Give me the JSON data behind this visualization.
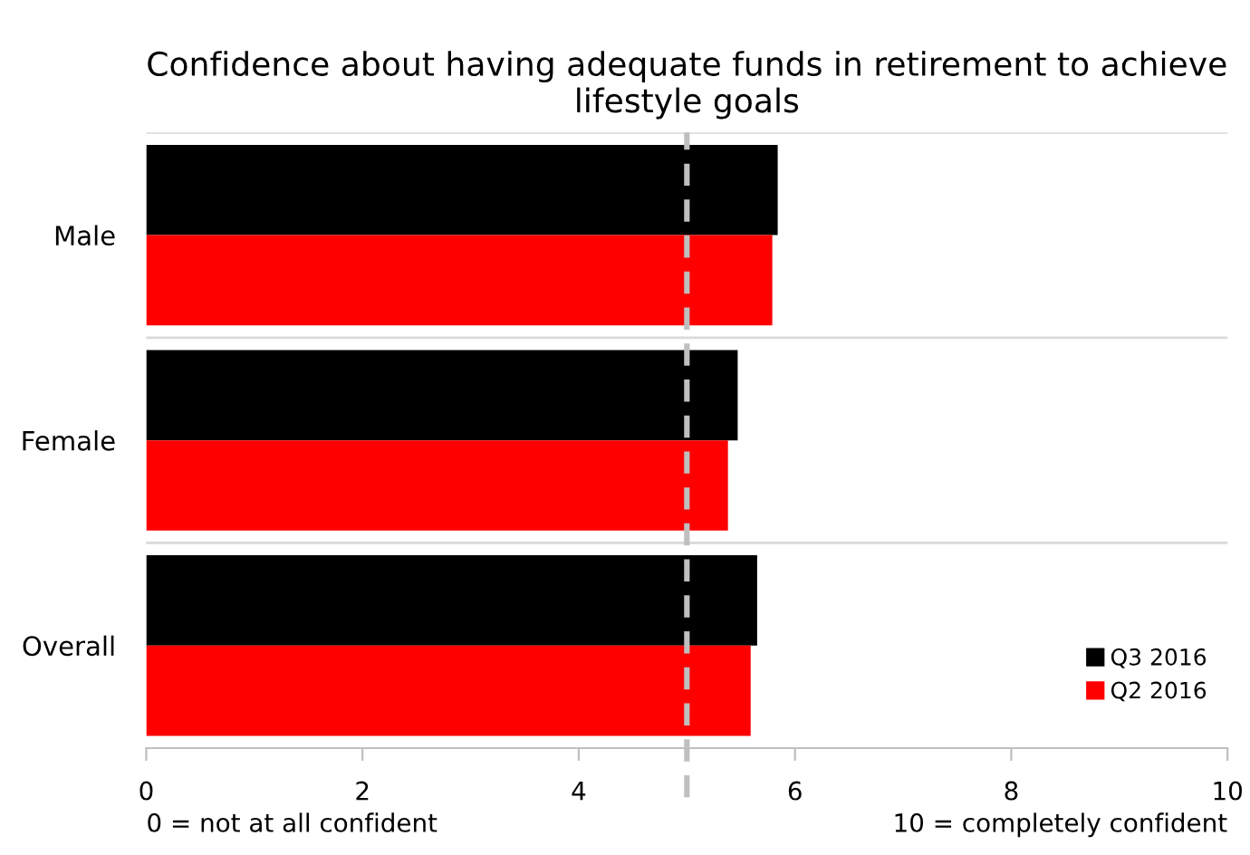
{
  "chart_data": {
    "type": "bar",
    "orientation": "horizontal",
    "title": "Confidence about having adequate funds in retirement to achieve lifestyle goals",
    "categories": [
      "Male",
      "Female",
      "Overall"
    ],
    "series": [
      {
        "name": "Q3 2016",
        "color": "#000000",
        "values": [
          5.84,
          5.47,
          5.65
        ]
      },
      {
        "name": "Q2 2016",
        "color": "#ff0000",
        "values": [
          5.79,
          5.38,
          5.59
        ]
      }
    ],
    "xlim": [
      0,
      10
    ],
    "xticks": [
      0,
      2,
      4,
      6,
      8,
      10
    ],
    "ref_lines": [
      {
        "axis": "x",
        "value": 5,
        "color": "#bfbfbf",
        "line_style": "dashed"
      }
    ],
    "annotations": [
      "0 = not at all confident",
      "10 = completely confident"
    ],
    "grid": "y",
    "legend": "bottom right"
  }
}
